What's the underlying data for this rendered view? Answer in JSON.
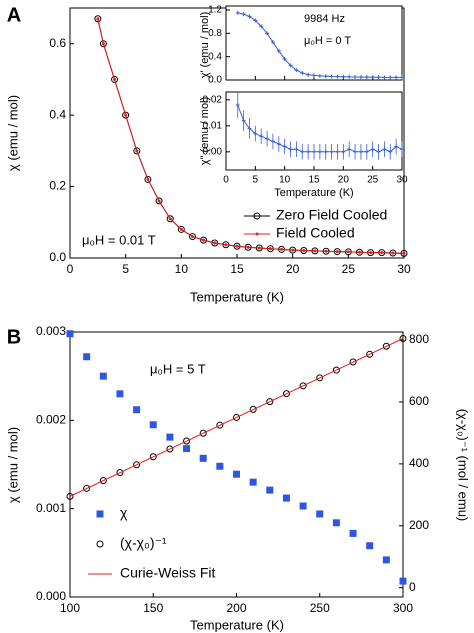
{
  "chart_data": [
    {
      "type": "line",
      "panel": "A",
      "xlabel": "Temperature (K)",
      "ylabel": "χ (emu / mol)",
      "annotations": [
        "μ₀H = 0.01 T"
      ],
      "xlim": [
        0,
        30
      ],
      "xticks": [
        0,
        5,
        10,
        15,
        20,
        25,
        30
      ],
      "ylim": [
        0,
        0.7
      ],
      "yticks": [
        {
          "value": 0,
          "label": "0.0"
        },
        {
          "value": 0.2,
          "label": "0.2"
        },
        {
          "value": 0.4,
          "label": "0.4"
        },
        {
          "value": 0.6,
          "label": "0.6"
        }
      ],
      "x": [
        2.5,
        3,
        4,
        5,
        6,
        7,
        8,
        9,
        10,
        11,
        12,
        13,
        14,
        15,
        16,
        17,
        18,
        19,
        20,
        21,
        22,
        23,
        24,
        25,
        26,
        27,
        28,
        29,
        30
      ],
      "series": [
        {
          "name": "Zero Field Cooled",
          "color": "#000000",
          "marker": "circle-open",
          "line": true,
          "values": [
            0.67,
            0.6,
            0.5,
            0.4,
            0.3,
            0.22,
            0.16,
            0.11,
            0.08,
            0.06,
            0.05,
            0.042,
            0.037,
            0.033,
            0.03,
            0.028,
            0.026,
            0.024,
            0.022,
            0.021,
            0.02,
            0.019,
            0.018,
            0.017,
            0.016,
            0.015,
            0.015,
            0.014,
            0.013
          ]
        },
        {
          "name": "Field Cooled",
          "color": "#e02020",
          "marker": "dot",
          "line": true,
          "values": [
            0.67,
            0.6,
            0.5,
            0.4,
            0.3,
            0.22,
            0.16,
            0.11,
            0.08,
            0.06,
            0.05,
            0.042,
            0.037,
            0.033,
            0.03,
            0.028,
            0.026,
            0.024,
            0.022,
            0.021,
            0.02,
            0.019,
            0.018,
            0.017,
            0.016,
            0.015,
            0.015,
            0.014,
            0.013
          ]
        }
      ]
    },
    {
      "type": "line",
      "ylabel": "χ' (emu / mol)",
      "annotations": [
        "9984 Hz",
        "μ₀H = 0 T"
      ],
      "xlim": [
        0,
        30
      ],
      "xticks": [
        0,
        5,
        10,
        15,
        20,
        25,
        30
      ],
      "show_xtick_labels": false,
      "ylim": [
        0,
        1.2
      ],
      "yticks": [
        {
          "value": 0,
          "label": "0.0"
        },
        {
          "value": 0.4,
          "label": "0.4"
        },
        {
          "value": 0.8,
          "label": "0.8"
        },
        {
          "value": 1.2,
          "label": "1.2"
        }
      ],
      "x": [
        2,
        3,
        4,
        5,
        6,
        7,
        8,
        9,
        10,
        11,
        12,
        13,
        14,
        15,
        16,
        17,
        18,
        19,
        20,
        21,
        22,
        23,
        24,
        25,
        26,
        27,
        28,
        29,
        30
      ],
      "series": [
        {
          "color": "#3a5fd9",
          "marker": "cross",
          "line": true,
          "values": [
            1.15,
            1.13,
            1.09,
            1.02,
            0.92,
            0.8,
            0.65,
            0.5,
            0.36,
            0.25,
            0.17,
            0.12,
            0.09,
            0.08,
            0.07,
            0.065,
            0.06,
            0.058,
            0.055,
            0.053,
            0.052,
            0.05,
            0.05,
            0.048,
            0.047,
            0.046,
            0.045,
            0.045,
            0.044
          ]
        }
      ]
    },
    {
      "type": "line",
      "xlabel": "Temperature (K)",
      "ylabel": "χ\" (emu / mol)",
      "xlim": [
        0,
        30
      ],
      "xticks": [
        0,
        5,
        10,
        15,
        20,
        25,
        30
      ],
      "ylim": [
        -0.007,
        0.023
      ],
      "yticks": [
        {
          "value": 0,
          "label": "0.00"
        },
        {
          "value": 0.01,
          "label": "0.01"
        },
        {
          "value": 0.02,
          "label": "0.02"
        }
      ],
      "x": [
        2,
        3,
        4,
        5,
        6,
        7,
        8,
        9,
        10,
        11,
        12,
        13,
        14,
        15,
        16,
        17,
        18,
        19,
        20,
        21,
        22,
        23,
        24,
        25,
        26,
        27,
        28,
        29,
        30
      ],
      "series": [
        {
          "color": "#3a5fd9",
          "marker": "cross",
          "line": true,
          "values": [
            0.018,
            0.012,
            0.009,
            0.007,
            0.006,
            0.005,
            0.004,
            0.003,
            0.002,
            0.001,
            0.001,
            0,
            0,
            0,
            0,
            0,
            0,
            0,
            0,
            0.001,
            0,
            0,
            0,
            0.001,
            0,
            0.001,
            0,
            0.002,
            0.001
          ],
          "errors": [
            0.005,
            0.004,
            0.004,
            0.003,
            0.003,
            0.003,
            0.003,
            0.003,
            0.003,
            0.003,
            0.003,
            0.003,
            0.003,
            0.003,
            0.003,
            0.003,
            0.003,
            0.003,
            0.003,
            0.003,
            0.003,
            0.003,
            0.003,
            0.003,
            0.003,
            0.003,
            0.003,
            0.003,
            0.003
          ]
        }
      ]
    },
    {
      "type": "scatter",
      "panel": "B",
      "xlabel": "Temperature (K)",
      "ylabel": "χ (emu / mol)",
      "y2label": "(χ-χ₀)⁻¹ (mol / emu)",
      "annotations": [
        "μ₀H = 5 T"
      ],
      "xlim": [
        100,
        300
      ],
      "xticks": [
        100,
        150,
        200,
        250,
        300
      ],
      "ylim": [
        0,
        0.003
      ],
      "yticks": [
        {
          "value": 0,
          "label": "0.000"
        },
        {
          "value": 0.001,
          "label": "0.001"
        },
        {
          "value": 0.002,
          "label": "0.002"
        },
        {
          "value": 0.003,
          "label": "0.003"
        }
      ],
      "y2lim": [
        -30,
        826
      ],
      "y2ticks": [
        0,
        200,
        400,
        600,
        800
      ],
      "x": [
        100,
        110,
        120,
        130,
        140,
        150,
        160,
        170,
        180,
        190,
        200,
        210,
        220,
        230,
        240,
        250,
        260,
        270,
        280,
        290,
        300
      ],
      "series": [
        {
          "name": "χ",
          "color": "#2f56e0",
          "marker": "square",
          "values": [
            0.00298,
            0.00272,
            0.0025,
            0.0023,
            0.00212,
            0.00195,
            0.00181,
            0.00168,
            0.00157,
            0.00148,
            0.00139,
            0.0013,
            0.00121,
            0.00112,
            0.00103,
            0.00094,
            0.00084,
            0.00072,
            0.00058,
            0.00042,
            0.00018
          ]
        },
        {
          "name": "(χ-χ₀)⁻¹",
          "color": "#000000",
          "marker": "circle-open",
          "axis": "y2",
          "values": [
            295,
            321,
            346,
            372,
            397,
            423,
            448,
            474,
            499,
            525,
            550,
            576,
            601,
            627,
            652,
            678,
            703,
            729,
            754,
            780,
            805
          ]
        },
        {
          "name": "Curie-Weiss Fit",
          "color": "#e02020",
          "line": true,
          "axis": "y2",
          "x": [
            100,
            300
          ],
          "values": [
            295,
            805
          ]
        }
      ]
    }
  ]
}
